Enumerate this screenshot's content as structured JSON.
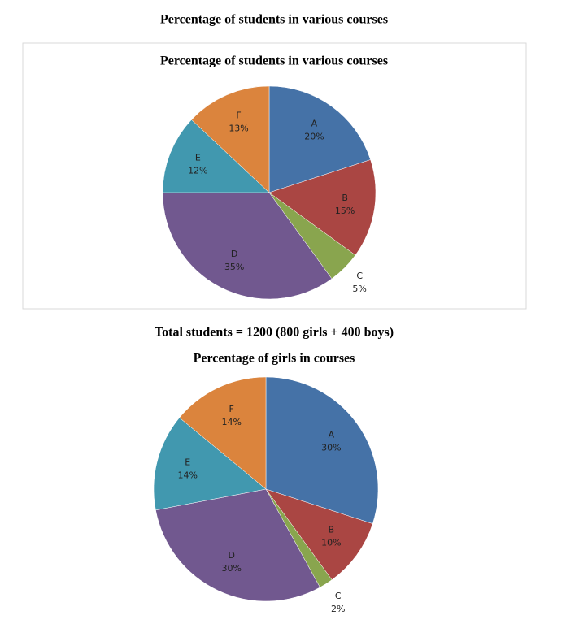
{
  "heading": "Percentage of students in various courses",
  "note": "Total students = 1200 (800 girls + 400 boys)",
  "chart_data": [
    {
      "type": "pie",
      "title": "Percentage of students in various courses",
      "categories": [
        "A",
        "B",
        "C",
        "D",
        "E",
        "F"
      ],
      "values": [
        20,
        15,
        5,
        35,
        12,
        13
      ],
      "value_labels": [
        "20%",
        "15%",
        "5%",
        "35%",
        "12%",
        "13%"
      ],
      "colors": [
        "#4572a7",
        "#aa4643",
        "#89a54e",
        "#71588f",
        "#4198af",
        "#db843d"
      ]
    },
    {
      "type": "pie",
      "title": "Percentage of girls in courses",
      "categories": [
        "A",
        "B",
        "C",
        "D",
        "E",
        "F"
      ],
      "values": [
        30,
        10,
        2,
        30,
        14,
        14
      ],
      "value_labels": [
        "30%",
        "10%",
        "2%",
        "30%",
        "14%",
        "14%"
      ],
      "colors": [
        "#4572a7",
        "#aa4643",
        "#89a54e",
        "#71588f",
        "#4198af",
        "#db843d"
      ]
    }
  ]
}
